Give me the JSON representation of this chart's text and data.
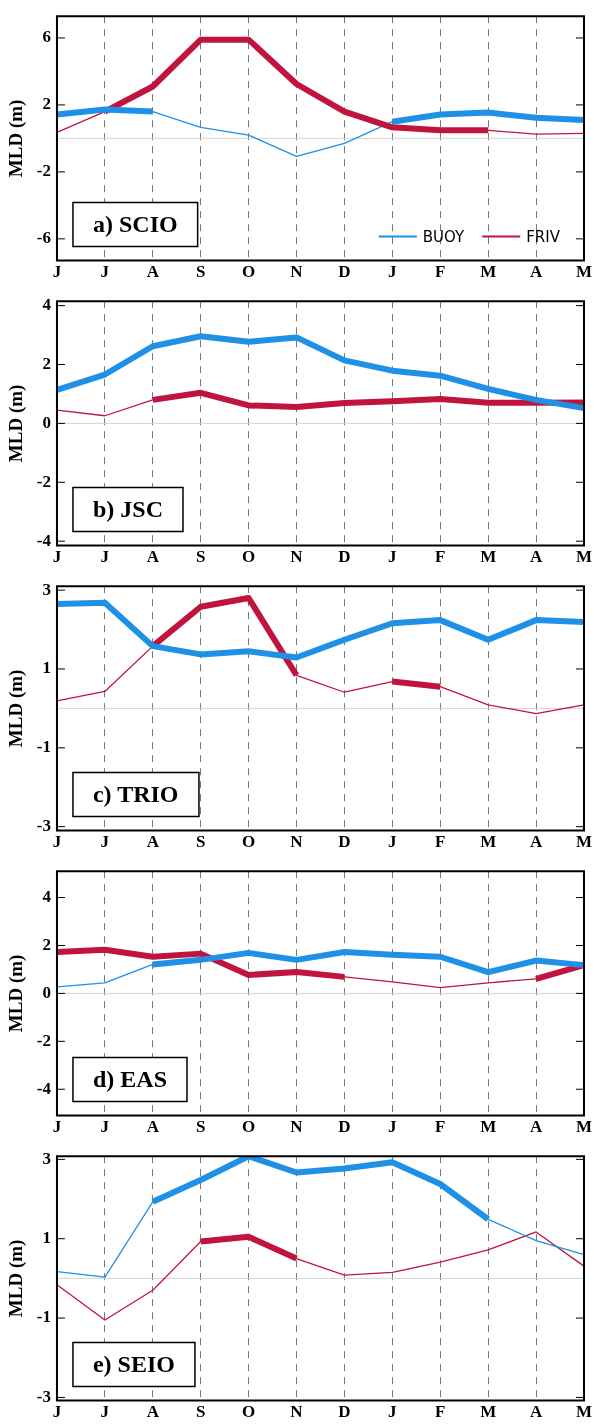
{
  "chart_data": [
    {
      "type": "line",
      "ylabel": "MLD (m)",
      "annotations": [
        "a) SCIO"
      ],
      "categories": [
        "J",
        "J",
        "A",
        "S",
        "O",
        "N",
        "D",
        "J",
        "F",
        "M",
        "A",
        "M"
      ],
      "ylim": [
        -7.3,
        7.3
      ],
      "yticks": [
        -6,
        -2,
        2,
        6
      ],
      "grid": "x",
      "legend": "bottom right",
      "ref_lines": [
        {
          "axis": "y",
          "value": 0,
          "color": "#d4d4d4"
        }
      ],
      "series": [
        {
          "name": "BUOY",
          "color": "#1e90e6",
          "values": [
            1.43,
            1.73,
            1.6,
            null,
            null,
            null,
            null,
            1.0,
            1.43,
            1.55,
            1.23,
            1.1
          ]
        },
        {
          "name": "FRIV",
          "color": "#c0143c",
          "values": [
            null,
            1.6,
            3.1,
            5.9,
            5.9,
            3.25,
            1.6,
            0.66,
            0.48,
            0.48,
            null,
            null
          ]
        },
        {
          "color": "#1e90e6",
          "values": [
            null,
            null,
            1.6,
            0.66,
            0.2,
            -1.07,
            -0.3,
            1.0,
            null,
            null,
            null,
            null
          ]
        },
        {
          "color": "#c0143c",
          "values": [
            0.36,
            1.6,
            null,
            null,
            null,
            null,
            null,
            null,
            null,
            0.48,
            0.25,
            0.3
          ]
        }
      ]
    },
    {
      "type": "line",
      "ylabel": "MLD (m)",
      "annotations": [
        "b) JSC"
      ],
      "categories": [
        "J",
        "J",
        "A",
        "S",
        "O",
        "N",
        "D",
        "J",
        "F",
        "M",
        "A",
        "M"
      ],
      "ylim": [
        -4.15,
        4.15
      ],
      "yticks": [
        -4,
        -2,
        0,
        2,
        4
      ],
      "grid": "x",
      "ref_lines": [
        {
          "axis": "y",
          "value": 0,
          "color": "#d4d4d4"
        }
      ],
      "series": [
        {
          "color": "#1e90e6",
          "values": [
            1.14,
            1.66,
            2.62,
            2.96,
            2.77,
            2.92,
            2.14,
            1.79,
            1.62,
            1.17,
            0.8,
            0.52
          ]
        },
        {
          "color": "#c0143c",
          "values": [
            null,
            null,
            0.8,
            1.04,
            0.61,
            0.56,
            0.69,
            0.75,
            0.83,
            0.7,
            0.7,
            0.71
          ]
        },
        {
          "color": "#c0143c",
          "values": [
            0.45,
            0.26,
            0.8,
            null,
            null,
            null,
            null,
            null,
            null,
            null,
            null,
            null
          ]
        }
      ]
    },
    {
      "type": "line",
      "ylabel": "MLD (m)",
      "annotations": [
        "c) TRIO"
      ],
      "categories": [
        "J",
        "J",
        "A",
        "S",
        "O",
        "N",
        "D",
        "J",
        "F",
        "M",
        "A",
        "M"
      ],
      "ylim": [
        -3.1,
        3.1
      ],
      "yticks": [
        -3,
        -1,
        1,
        3
      ],
      "grid": "x",
      "ref_lines": [
        {
          "axis": "y",
          "value": 0,
          "color": "#d4d4d4"
        }
      ],
      "series": [
        {
          "color": "#1e90e6",
          "values": [
            2.65,
            2.68,
            1.58,
            1.37,
            1.45,
            1.29,
            1.74,
            2.16,
            2.24,
            1.74,
            2.24,
            2.19
          ]
        },
        {
          "color": "#c0143c",
          "values": [
            null,
            null,
            1.58,
            2.58,
            2.8,
            0.84,
            null,
            0.68,
            0.55,
            null,
            null,
            null
          ]
        },
        {
          "color": "#c0143c",
          "values": [
            0.19,
            0.43,
            1.58,
            null,
            null,
            0.84,
            0.41,
            0.68,
            0.55,
            0.09,
            -0.13,
            0.09
          ]
        }
      ]
    },
    {
      "type": "line",
      "ylabel": "MLD (m)",
      "annotations": [
        "d) EAS"
      ],
      "categories": [
        "J",
        "J",
        "A",
        "S",
        "O",
        "N",
        "D",
        "J",
        "F",
        "M",
        "A",
        "M"
      ],
      "ylim": [
        -5.1,
        5.1
      ],
      "yticks": [
        -4,
        -2,
        0,
        2,
        4
      ],
      "grid": "x",
      "ref_lines": [
        {
          "axis": "y",
          "value": 0,
          "color": "#d4d4d4"
        }
      ],
      "series": [
        {
          "color": "#1e90e6",
          "values": [
            null,
            null,
            1.21,
            1.4,
            1.69,
            1.4,
            1.73,
            1.61,
            1.53,
            0.89,
            1.37,
            1.18
          ]
        },
        {
          "color": "#c0143c",
          "values": [
            1.73,
            1.82,
            1.53,
            1.66,
            0.77,
            0.89,
            0.69,
            null,
            null,
            null,
            0.61,
            1.18
          ]
        },
        {
          "color": "#1e90e6",
          "values": [
            0.27,
            0.44,
            1.21,
            null,
            null,
            null,
            null,
            null,
            null,
            null,
            null,
            null
          ]
        },
        {
          "color": "#c0143c",
          "values": [
            null,
            null,
            null,
            null,
            null,
            null,
            0.69,
            0.48,
            0.24,
            0.44,
            0.61,
            null
          ]
        }
      ]
    },
    {
      "type": "line",
      "ylabel": "MLD (m)",
      "annotations": [
        "e) SEIO"
      ],
      "categories": [
        "J",
        "J",
        "A",
        "S",
        "O",
        "N",
        "D",
        "J",
        "F",
        "M",
        "A",
        "M"
      ],
      "ylim": [
        -3.08,
        3.08
      ],
      "yticks": [
        -3,
        -1,
        1,
        3
      ],
      "grid": "x",
      "ref_lines": [
        {
          "axis": "y",
          "value": 0,
          "color": "#d4d4d4"
        }
      ],
      "series": [
        {
          "color": "#1e90e6",
          "values": [
            null,
            null,
            1.93,
            2.48,
            3.08,
            2.67,
            2.77,
            2.93,
            2.38,
            1.49,
            null,
            null
          ]
        },
        {
          "color": "#c0143c",
          "values": [
            null,
            null,
            null,
            0.93,
            1.05,
            0.5,
            null,
            null,
            null,
            null,
            null,
            null
          ]
        },
        {
          "color": "#1e90e6",
          "values": [
            0.17,
            0.03,
            1.93,
            null,
            null,
            null,
            null,
            null,
            null,
            1.49,
            0.95,
            0.6
          ]
        },
        {
          "color": "#c0143c",
          "values": [
            -0.16,
            -1.05,
            -0.3,
            0.93,
            null,
            0.5,
            0.08,
            0.15,
            0.41,
            0.72,
            1.17,
            0.31
          ]
        }
      ]
    }
  ]
}
